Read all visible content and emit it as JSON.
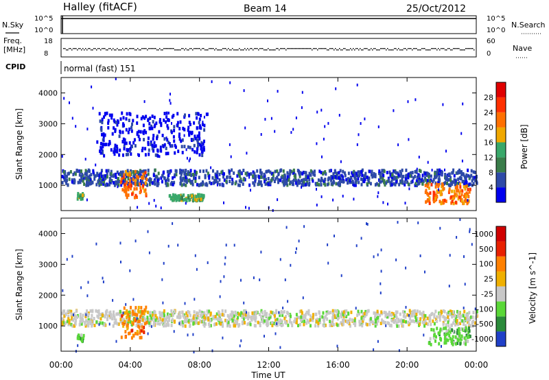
{
  "header": {
    "station": "Halley (fitACF)",
    "beam": "Beam 14",
    "date": "25/Oct/2012",
    "cpid": "CPID",
    "mode_text": "normal (fast) 151"
  },
  "status_panels": {
    "nsky_label": "N.Sky",
    "nsky_ticks": [
      "10^5",
      "10^0"
    ],
    "nsearch_label": "N.Search",
    "nsearch_ticks": [
      "10^5",
      "10^0"
    ],
    "freq_label_1": "Freq.",
    "freq_label_2": "[MHz]",
    "freq_ticks": [
      "18",
      "8"
    ],
    "nave_label": "Nave",
    "nave_ticks": [
      "60",
      "0"
    ]
  },
  "colors": {
    "power": [
      "#0000ee",
      "#2e4aa8",
      "#3a7d4a",
      "#39a86a",
      "#f0a800",
      "#ff7000",
      "#ff3000",
      "#e00000"
    ],
    "velocity": [
      "#2040c8",
      "#2a8a3a",
      "#5ad838",
      "#c8c8c8",
      "#f0b000",
      "#ff8000",
      "#e82000",
      "#d00000"
    ]
  },
  "chart_data": [
    {
      "type": "heatmap",
      "name": "power",
      "ylabel": "Slant Range [km]",
      "ylim": [
        180,
        4500
      ],
      "yticks": [
        1000,
        2000,
        3000,
        4000
      ],
      "colorbar_label": "Power [dB]",
      "colorbar_ticks": [
        "4",
        "8",
        "12",
        "16",
        "20",
        "24",
        "28"
      ],
      "regions": [
        {
          "label": "near-range band",
          "x": [
            0.0,
            24.0
          ],
          "range_km": [
            1050,
            1550
          ],
          "level": 1
        },
        {
          "label": "morning patch",
          "x": [
            3.4,
            4.9
          ],
          "range_km": [
            650,
            1500
          ],
          "level": 5
        },
        {
          "label": "early patch",
          "x": [
            0.9,
            1.3
          ],
          "range_km": [
            600,
            800
          ],
          "level": 3
        },
        {
          "label": "afternoon patch",
          "x": [
            6.2,
            8.2
          ],
          "range_km": [
            550,
            750
          ],
          "level": 3
        },
        {
          "label": "evening patch",
          "x": [
            21.0,
            23.6
          ],
          "range_km": [
            450,
            1100
          ],
          "level": 5
        },
        {
          "label": "far-range echoes",
          "x": [
            2.0,
            8.5
          ],
          "range_km": [
            2000,
            3400
          ],
          "level": 0
        }
      ]
    },
    {
      "type": "heatmap",
      "name": "velocity",
      "ylabel": "Slant Range [km]",
      "xlabel": "Time UT",
      "ylim": [
        180,
        4500
      ],
      "yticks": [
        1000,
        2000,
        3000,
        4000
      ],
      "xticks": [
        "00:00",
        "04:00",
        "08:00",
        "12:00",
        "16:00",
        "20:00",
        "00:00"
      ],
      "colorbar_label": "Velocity [m s^-1]",
      "colorbar_ticks": [
        "1000",
        "500",
        "100",
        "25",
        "-25",
        "-100",
        "-500",
        "-1000"
      ],
      "regions": [
        {
          "label": "grey near-range band",
          "x": [
            0.0,
            24.0
          ],
          "range_km": [
            1050,
            1550
          ],
          "level": 3
        },
        {
          "label": "morning orange patch",
          "x": [
            3.4,
            4.9
          ],
          "range_km": [
            650,
            1700
          ],
          "level": 5
        },
        {
          "label": "early green patch",
          "x": [
            0.9,
            1.3
          ],
          "range_km": [
            550,
            800
          ],
          "level": 2
        },
        {
          "label": "evening green patch",
          "x": [
            21.2,
            23.6
          ],
          "range_km": [
            450,
            1000
          ],
          "level": 2
        }
      ]
    }
  ]
}
